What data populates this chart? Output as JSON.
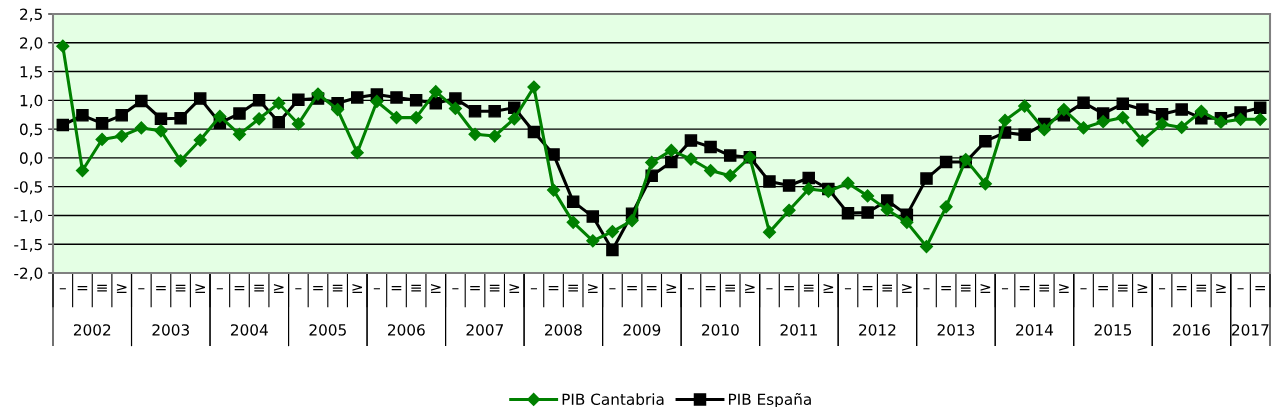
{
  "chart_data": {
    "type": "line",
    "categories": [
      "–",
      "=",
      "≡",
      "≥",
      "–",
      "=",
      "≡",
      "≥",
      "–",
      "=",
      "≡",
      "≥",
      "–",
      "=",
      "≡",
      "≥",
      "–",
      "=",
      "≡",
      "≥",
      "–",
      "=",
      "≡",
      "≥",
      "–",
      "=",
      "≡",
      "≥",
      "–",
      "=",
      "=",
      "≥",
      "–",
      "=",
      "≡",
      "≥",
      "–",
      "=",
      "≡",
      "≥",
      "–",
      "=",
      "≡",
      "≥",
      "–",
      "=",
      "≡",
      "≥",
      "–",
      "=",
      "≡",
      "≥",
      "–",
      "=",
      "≡",
      "≥",
      "–",
      "=",
      "≡",
      "≥",
      "–",
      "="
    ],
    "series": [
      {
        "name": "PIB Cantabria",
        "color": "#008000",
        "marker": "diamond",
        "values": [
          1.94,
          -0.22,
          0.32,
          0.38,
          0.52,
          0.47,
          -0.05,
          0.31,
          0.72,
          0.41,
          0.68,
          0.95,
          0.59,
          1.11,
          0.84,
          0.09,
          0.98,
          0.7,
          0.7,
          1.15,
          0.86,
          0.41,
          0.38,
          0.68,
          1.23,
          -0.56,
          -1.12,
          -1.44,
          -1.28,
          -1.09,
          -0.08,
          0.13,
          -0.02,
          -0.22,
          -0.31,
          0.01,
          -1.29,
          -0.91,
          -0.54,
          -0.58,
          -0.44,
          -0.66,
          -0.9,
          -1.12,
          -1.54,
          -0.85,
          -0.03,
          -0.45,
          0.65,
          0.9,
          0.49,
          0.84,
          0.52,
          0.63,
          0.7,
          0.3,
          0.59,
          0.53,
          0.81,
          0.62,
          0.67,
          0.67
        ]
      },
      {
        "name": "PIB España",
        "color": "#000000",
        "marker": "square",
        "values": [
          0.57,
          0.74,
          0.6,
          0.74,
          0.99,
          0.68,
          0.69,
          1.03,
          0.61,
          0.77,
          1.0,
          0.62,
          1.01,
          1.03,
          0.95,
          1.05,
          1.1,
          1.05,
          1.0,
          0.95,
          1.03,
          0.81,
          0.81,
          0.87,
          0.45,
          0.06,
          -0.76,
          -1.02,
          -1.6,
          -0.97,
          -0.31,
          -0.07,
          0.3,
          0.19,
          0.04,
          0.01,
          -0.41,
          -0.48,
          -0.35,
          -0.54,
          -0.96,
          -0.95,
          -0.74,
          -0.99,
          -0.36,
          -0.07,
          -0.07,
          0.29,
          0.44,
          0.4,
          0.59,
          0.74,
          0.96,
          0.77,
          0.94,
          0.84,
          0.76,
          0.84,
          0.69,
          0.69,
          0.79,
          0.87
        ]
      }
    ],
    "annotations": [
      "2002",
      "2003",
      "2004",
      "2005",
      "2006",
      "2007",
      "2008",
      "2009",
      "2010",
      "2011",
      "2012",
      "2013",
      "2014",
      "2015",
      "2016",
      "2017"
    ],
    "ylim": [
      -2.0,
      2.5
    ],
    "yticks": [
      {
        "value": -2.0,
        "label": "-2,0"
      },
      {
        "value": -1.5,
        "label": "-1,5"
      },
      {
        "value": -1.0,
        "label": "-1,0"
      },
      {
        "value": -0.5,
        "label": "-0,5"
      },
      {
        "value": 0.0,
        "label": "0,0"
      },
      {
        "value": 0.5,
        "label": "0,5"
      },
      {
        "value": 1.0,
        "label": "1,0"
      },
      {
        "value": 1.5,
        "label": "1,5"
      },
      {
        "value": 2.0,
        "label": "2,0"
      },
      {
        "value": 2.5,
        "label": "2,5"
      }
    ],
    "grid": "y",
    "legend": "bottom",
    "line_style": "solid"
  }
}
